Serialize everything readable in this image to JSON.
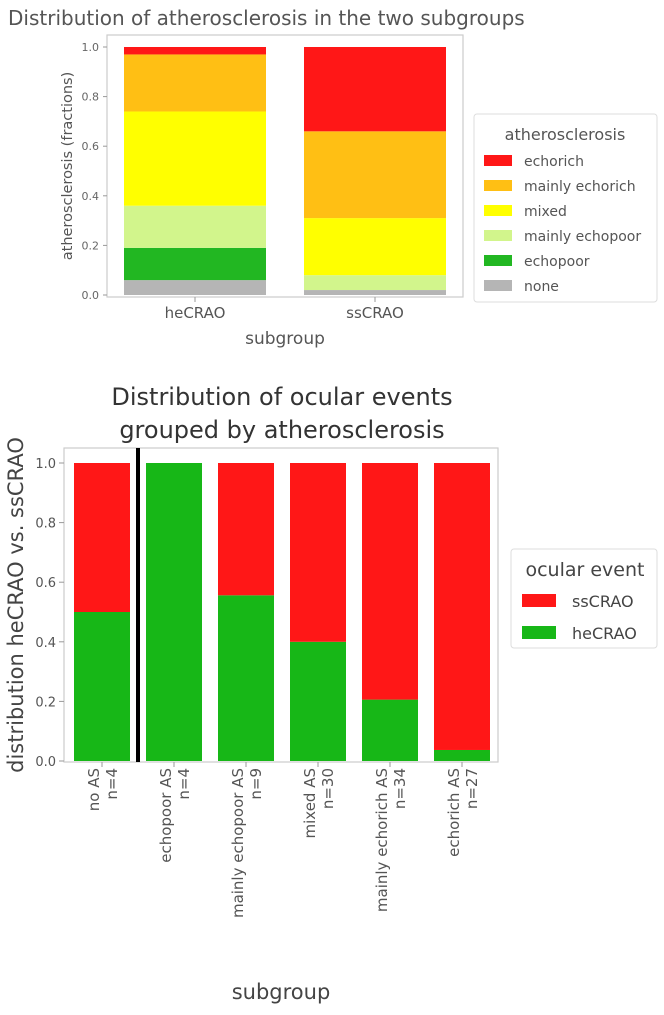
{
  "chart_data": [
    {
      "type": "bar",
      "stacked": true,
      "title": "Distribution of atherosclerosis in the two subgroups",
      "xlabel": "subgroup",
      "ylabel": "atherosclerosis (fractions)",
      "ylim": [
        0,
        1.0
      ],
      "yticks": [
        "0.0",
        "0.2",
        "0.4",
        "0.6",
        "0.8",
        "1.0"
      ],
      "categories": [
        "heCRAO",
        "ssCRAO"
      ],
      "legend": {
        "title": "atherosclerosis",
        "placement": "right",
        "entries": [
          "echorich",
          "mainly echorich",
          "mixed",
          "mainly echopoor",
          "echopoor",
          "none"
        ]
      },
      "series": [
        {
          "name": "none",
          "color": "#b5b5b5",
          "values": [
            0.06,
            0.02
          ]
        },
        {
          "name": "echopoor",
          "color": "#22b722",
          "values": [
            0.13,
            0.0
          ]
        },
        {
          "name": "mainly echopoor",
          "color": "#d2f58c",
          "values": [
            0.17,
            0.06
          ]
        },
        {
          "name": "mixed",
          "color": "#ffff00",
          "values": [
            0.38,
            0.23
          ]
        },
        {
          "name": "mainly echorich",
          "color": "#ffbf14",
          "values": [
            0.23,
            0.35
          ]
        },
        {
          "name": "echorich",
          "color": "#ff1717",
          "values": [
            0.03,
            0.34
          ]
        }
      ]
    },
    {
      "type": "bar",
      "stacked": true,
      "title": [
        "Distribution of ocular events",
        "grouped by atherosclerosis"
      ],
      "xlabel": "subgroup",
      "ylabel": "distribution heCRAO vs. ssCRAO",
      "ylim": [
        0,
        1.0
      ],
      "yticks": [
        "0.0",
        "0.2",
        "0.4",
        "0.6",
        "0.8",
        "1.0"
      ],
      "categories": [
        [
          "no AS",
          "n=4"
        ],
        [
          "echopoor AS",
          "n=4"
        ],
        [
          "mainly echopoor AS",
          "n=9"
        ],
        [
          "mixed AS",
          "n=30"
        ],
        [
          "mainly echorich AS",
          "n=34"
        ],
        [
          "echorich AS",
          "n=27"
        ]
      ],
      "separator_after_category": 0,
      "legend": {
        "title": "ocular event",
        "placement": "right",
        "entries": [
          "ssCRAO",
          "heCRAO"
        ]
      },
      "series": [
        {
          "name": "heCRAO",
          "color": "#17b717",
          "values": [
            0.5,
            1.0,
            0.556,
            0.4,
            0.206,
            0.037
          ]
        },
        {
          "name": "ssCRAO",
          "color": "#ff1717",
          "values": [
            0.5,
            0.0,
            0.444,
            0.6,
            0.794,
            0.963
          ]
        }
      ]
    }
  ]
}
